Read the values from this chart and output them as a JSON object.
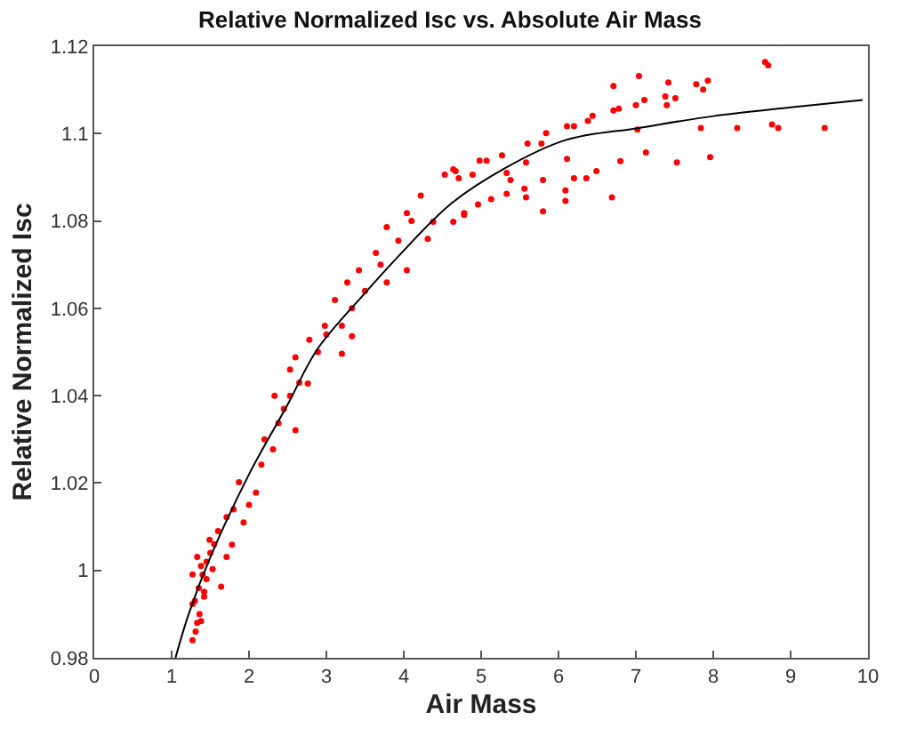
{
  "chart_data": {
    "type": "scatter",
    "title": "Relative Normalized Isc vs. Absolute Air Mass",
    "xlabel": "Air Mass",
    "ylabel": "Relative Normalized Isc",
    "xlim": [
      0,
      10
    ],
    "xticks": [
      0,
      1,
      2,
      3,
      4,
      5,
      6,
      7,
      8,
      9,
      10
    ],
    "ylim": [
      0.98,
      1.12
    ],
    "yticks": [
      0.98,
      1,
      1.02,
      1.04,
      1.06,
      1.08,
      1.1,
      1.12
    ],
    "series": [
      {
        "marker": "circle",
        "color": "#ff0000",
        "x": [
          8.67,
          8.71,
          6.71,
          7.04,
          7.42,
          7.78,
          7.93,
          7.87,
          7.38,
          7.51,
          7.4,
          7.11,
          7.0,
          6.71,
          6.78,
          6.44,
          6.38,
          6.11,
          6.2,
          5.84,
          5.6,
          5.78,
          7.02,
          7.84,
          8.31,
          8.76,
          8.84,
          9.44,
          7.13,
          6.8,
          7.53,
          7.96,
          6.11,
          6.49,
          6.2,
          6.36,
          5.8,
          5.58,
          5.27,
          5.07,
          6.09,
          6.69,
          6.09,
          5.8,
          5.56,
          5.58,
          5.33,
          5.13,
          4.96,
          4.78,
          4.64,
          4.71,
          4.89,
          4.67,
          5.33,
          5.38,
          4.64,
          4.53,
          4.22,
          4.04,
          3.78,
          3.93,
          3.64,
          3.42,
          3.27,
          4.04,
          4.31,
          4.38,
          4.78,
          3.78,
          3.11,
          3.33,
          2.98,
          3.2,
          3.33,
          2.78,
          3.2,
          2.6,
          2.53,
          2.33,
          4.98,
          2.89,
          2.53,
          2.38,
          2.6,
          2.16,
          1.87,
          2.09,
          1.71,
          1.93,
          1.49,
          1.78,
          1.33,
          1.53,
          1.27,
          1.42,
          1.27,
          1.38,
          1.27,
          1.31,
          1.64,
          1.71,
          2.0,
          2.31,
          2.76,
          1.35,
          1.4,
          1.45,
          1.3,
          1.36,
          1.5,
          1.55,
          1.6,
          1.45,
          1.38,
          1.42,
          1.33,
          1.8,
          2.2,
          2.45,
          2.65,
          3.0,
          3.5,
          3.7,
          4.1
        ],
        "values": [
          1.1164,
          1.1156,
          1.1109,
          1.1132,
          1.1117,
          1.1113,
          1.1121,
          1.1101,
          1.1085,
          1.1081,
          1.1065,
          1.1077,
          1.1065,
          1.1053,
          1.1057,
          1.1041,
          1.1029,
          1.1017,
          1.1017,
          1.1001,
          1.0977,
          1.0977,
          1.1009,
          1.1013,
          1.1013,
          1.1021,
          1.1013,
          1.1013,
          1.0957,
          1.0937,
          1.0934,
          1.0946,
          1.0942,
          1.0914,
          1.0898,
          1.0898,
          1.0894,
          1.0934,
          1.095,
          1.0938,
          1.087,
          1.0854,
          1.0846,
          1.0822,
          1.0874,
          1.0854,
          1.0862,
          1.085,
          1.0838,
          1.0814,
          1.0798,
          1.0898,
          1.0906,
          1.0914,
          1.091,
          1.0894,
          1.0918,
          1.0906,
          1.0858,
          1.0818,
          1.0786,
          1.0755,
          1.0727,
          1.0687,
          1.0659,
          1.0687,
          1.0759,
          1.0798,
          1.0818,
          1.0659,
          1.0619,
          1.06,
          1.056,
          1.056,
          1.0536,
          1.0528,
          1.0496,
          1.0488,
          1.046,
          1.04,
          1.0938,
          1.05,
          1.04,
          1.0337,
          1.0321,
          1.0242,
          1.0202,
          1.0178,
          1.0122,
          1.011,
          1.007,
          1.0059,
          1.0031,
          1.0003,
          0.9991,
          0.9951,
          0.9923,
          0.9884,
          0.984,
          0.986,
          0.9963,
          1.0031,
          1.015,
          1.0277,
          1.0428,
          0.996,
          0.999,
          1.002,
          0.993,
          0.99,
          1.004,
          1.006,
          1.009,
          0.998,
          1.001,
          0.994,
          0.988,
          1.014,
          1.03,
          1.037,
          1.043,
          1.054,
          1.064,
          1.07,
          1.08
        ]
      },
      {
        "type": "line",
        "color": "#000000",
        "x": [
          1.05,
          1.22,
          1.5,
          2.0,
          2.5,
          2.89,
          3.5,
          3.93,
          4.6,
          5.3,
          6.09,
          7.04,
          8.0,
          9.0,
          9.93
        ],
        "values": [
          0.98,
          0.99,
          1.003,
          1.022,
          1.038,
          1.0508,
          1.0635,
          1.0719,
          1.0838,
          1.092,
          1.0985,
          1.1013,
          1.104,
          1.106,
          1.1077
        ]
      }
    ]
  }
}
